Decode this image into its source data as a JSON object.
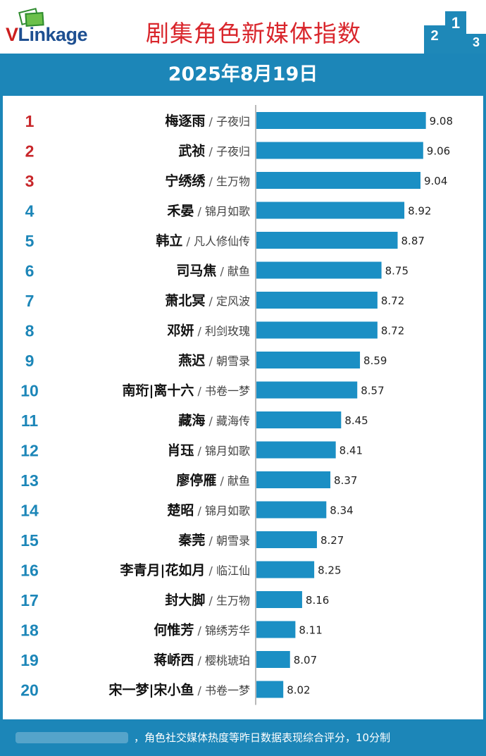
{
  "brand": {
    "logo_v": "V",
    "logo_rest": "Linkage",
    "icon": "cards-logo-icon"
  },
  "header": {
    "title": "剧集角色新媒体指数",
    "podium": [
      "2",
      "1",
      "3"
    ],
    "date": "2025年8月19日"
  },
  "footer": {
    "note": "，角色社交媒体热度等昨日数据表现综合评分，10分制"
  },
  "colors": {
    "bar": "#1b8fc4",
    "rank_top": "#c8262a",
    "rank": "#1c86b8",
    "band": "#1c86b8",
    "title": "#d9262c"
  },
  "chart_data": {
    "type": "bar",
    "orientation": "horizontal",
    "title": "剧集角色新媒体指数",
    "xlim": [
      7.82,
      9.15
    ],
    "grid": false,
    "rows": [
      {
        "rank": "1",
        "name": "梅逐雨",
        "show": "子夜归",
        "value": 9.08,
        "label": "9.08"
      },
      {
        "rank": "2",
        "name": "武祯",
        "show": "子夜归",
        "value": 9.06,
        "label": "9.06"
      },
      {
        "rank": "3",
        "name": "宁绣绣",
        "show": "生万物",
        "value": 9.04,
        "label": "9.04"
      },
      {
        "rank": "4",
        "name": "禾晏",
        "show": "锦月如歌",
        "value": 8.92,
        "label": "8.92"
      },
      {
        "rank": "5",
        "name": "韩立",
        "show": "凡人修仙传",
        "value": 8.87,
        "label": "8.87"
      },
      {
        "rank": "6",
        "name": "司马焦",
        "show": "献鱼",
        "value": 8.75,
        "label": "8.75"
      },
      {
        "rank": "7",
        "name": "萧北冥",
        "show": "定风波",
        "value": 8.72,
        "label": "8.72"
      },
      {
        "rank": "8",
        "name": "邓妍",
        "show": "利剑玫瑰",
        "value": 8.72,
        "label": "8.72"
      },
      {
        "rank": "9",
        "name": "燕迟",
        "show": "朝雪录",
        "value": 8.59,
        "label": "8.59"
      },
      {
        "rank": "10",
        "name": "南珩|离十六",
        "show": "书卷一梦",
        "value": 8.57,
        "label": "8.57"
      },
      {
        "rank": "11",
        "name": "藏海",
        "show": "藏海传",
        "value": 8.45,
        "label": "8.45"
      },
      {
        "rank": "12",
        "name": "肖珏",
        "show": "锦月如歌",
        "value": 8.41,
        "label": "8.41"
      },
      {
        "rank": "13",
        "name": "廖停雁",
        "show": "献鱼",
        "value": 8.37,
        "label": "8.37"
      },
      {
        "rank": "14",
        "name": "楚昭",
        "show": "锦月如歌",
        "value": 8.34,
        "label": "8.34"
      },
      {
        "rank": "15",
        "name": "秦莞",
        "show": "朝雪录",
        "value": 8.27,
        "label": "8.27"
      },
      {
        "rank": "16",
        "name": "李青月|花如月",
        "show": "临江仙",
        "value": 8.25,
        "label": "8.25"
      },
      {
        "rank": "17",
        "name": "封大脚",
        "show": "生万物",
        "value": 8.16,
        "label": "8.16"
      },
      {
        "rank": "18",
        "name": "何惟芳",
        "show": "锦绣芳华",
        "value": 8.11,
        "label": "8.11"
      },
      {
        "rank": "19",
        "name": "蒋峤西",
        "show": "樱桃琥珀",
        "value": 8.07,
        "label": "8.07"
      },
      {
        "rank": "20",
        "name": "宋一梦|宋小鱼",
        "show": "书卷一梦",
        "value": 8.02,
        "label": "8.02"
      }
    ]
  }
}
